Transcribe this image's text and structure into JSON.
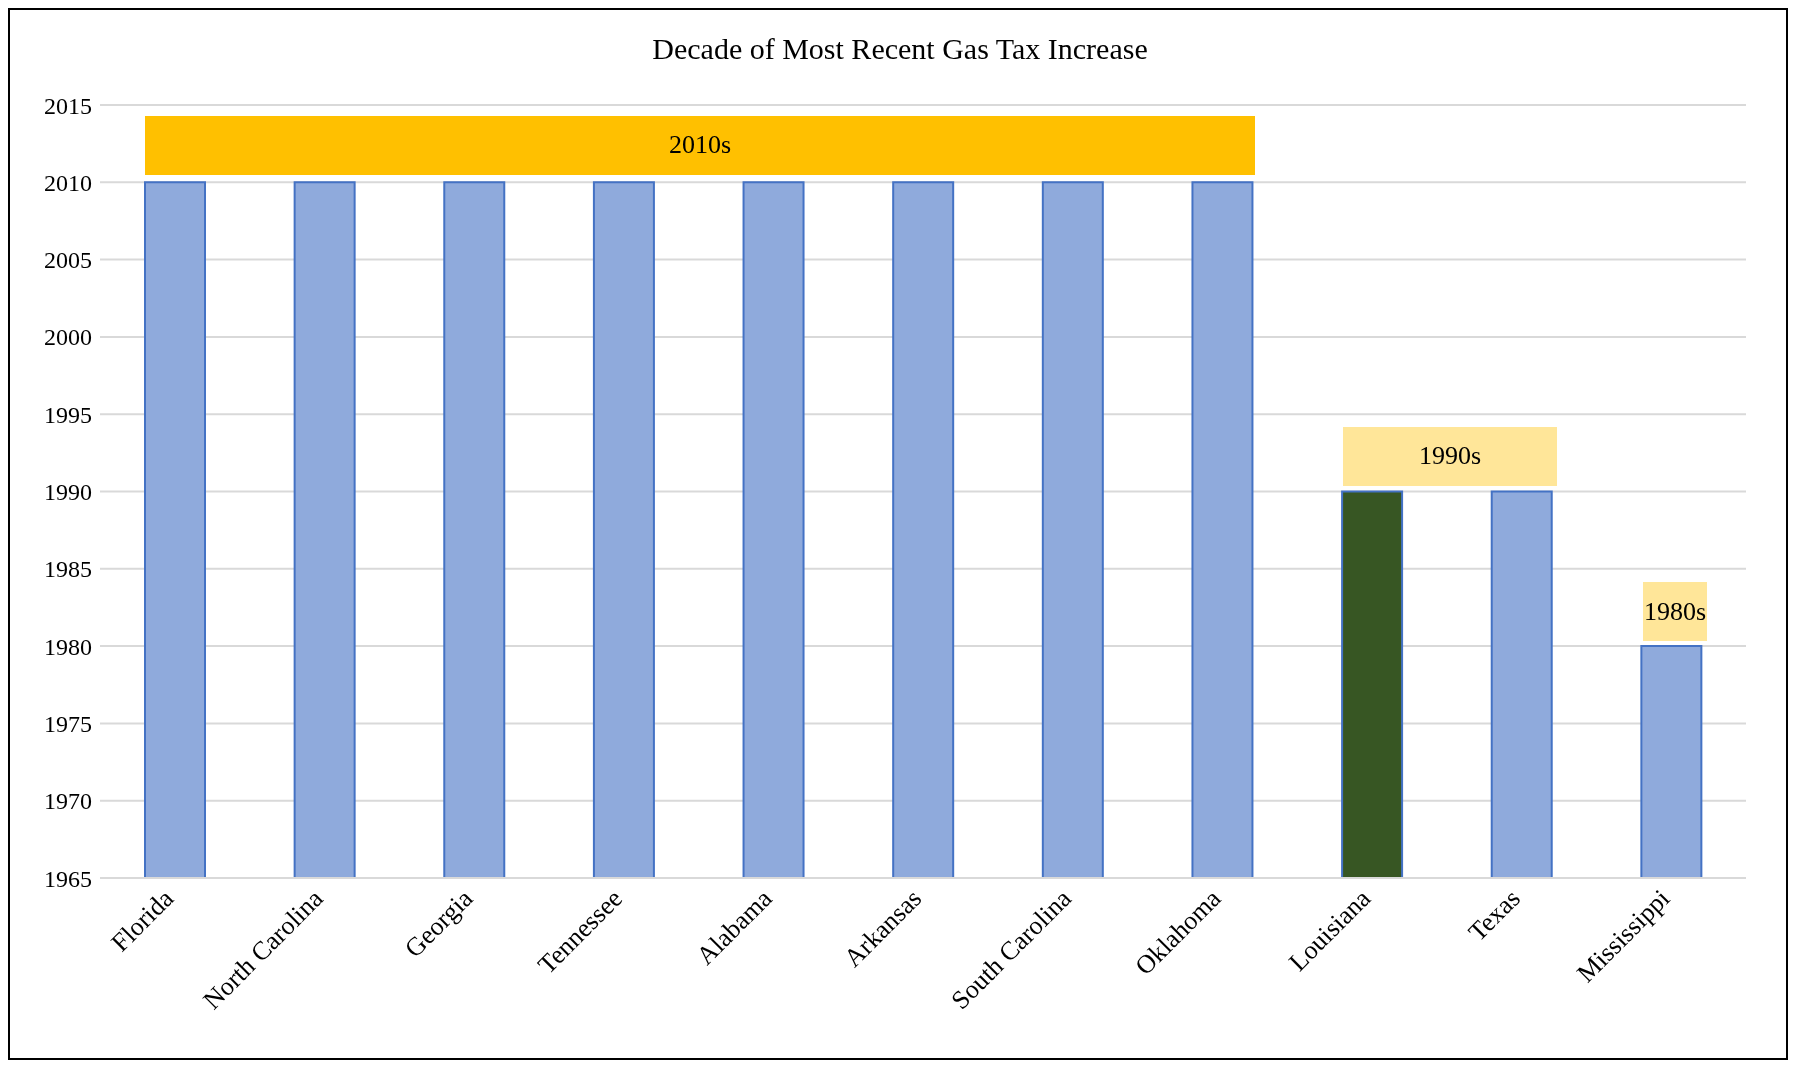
{
  "chart_data": {
    "type": "bar",
    "title": "Decade of Most Recent Gas Tax Increase",
    "categories": [
      "Florida",
      "North Carolina",
      "Georgia",
      "Tennessee",
      "Alabama",
      "Arkansas",
      "South Carolina",
      "Oklahoma",
      "Louisiana",
      "Texas",
      "Mississippi"
    ],
    "values": [
      2010,
      2010,
      2010,
      2010,
      2010,
      2010,
      2010,
      2010,
      1990,
      1990,
      1980
    ],
    "colors": [
      "#8faadc",
      "#8faadc",
      "#8faadc",
      "#8faadc",
      "#8faadc",
      "#8faadc",
      "#8faadc",
      "#8faadc",
      "#375623",
      "#8faadc",
      "#8faadc"
    ],
    "ylim": [
      1965,
      2015
    ],
    "yticks": [
      1965,
      1970,
      1975,
      1980,
      1985,
      1990,
      1995,
      2000,
      2005,
      2010,
      2015
    ],
    "grid": "y",
    "legend": false,
    "annotations": [
      "2010s",
      "1990s",
      "1980s"
    ]
  }
}
